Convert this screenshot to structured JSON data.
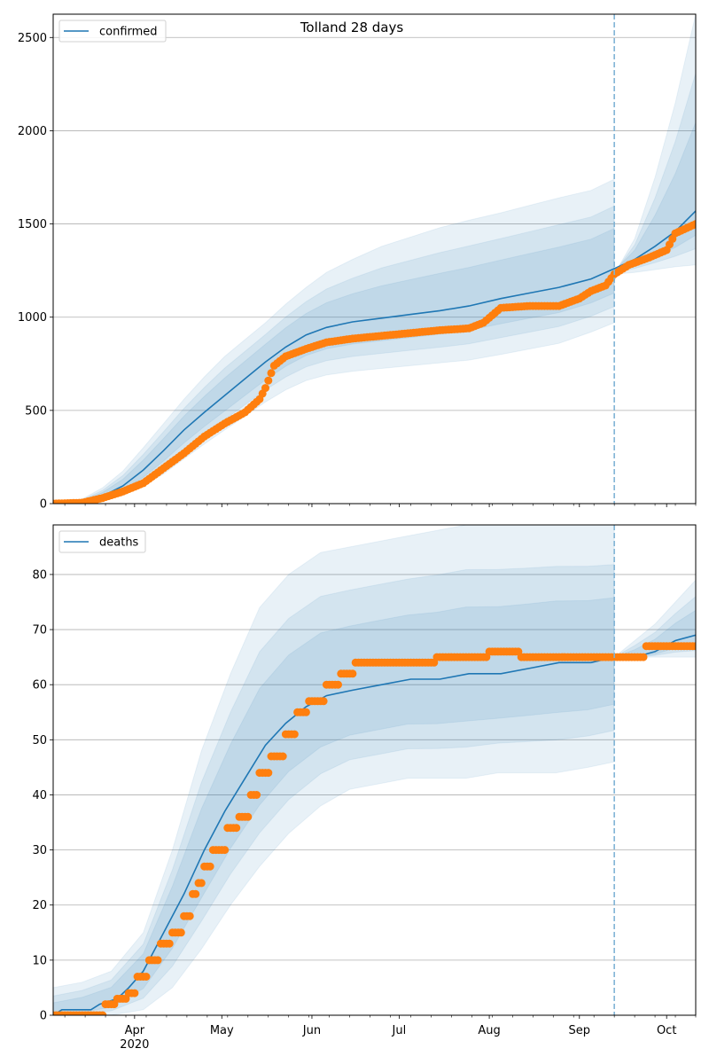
{
  "chart_data": [
    {
      "type": "line",
      "title": "Tolland 28 days",
      "xlabel": "",
      "ylabel": "",
      "x_range": [
        "2020-03-04",
        "2020-10-11"
      ],
      "ylim": [
        0,
        2625
      ],
      "yticks": [
        0,
        500,
        1000,
        1500,
        2000,
        2500
      ],
      "grid": "y",
      "legend": {
        "position": "top-left",
        "entries": [
          "confirmed"
        ]
      },
      "forecast_start": "2020-09-13",
      "colors": {
        "line": "#1f77b4",
        "points": "#ff7f0e",
        "band": "#1f77b4",
        "vline": "#7fb3d5"
      },
      "series": [
        {
          "name": "confirmed",
          "kind": "model-median",
          "x": [
            "2020-03-04",
            "2020-03-14",
            "2020-03-21",
            "2020-03-28",
            "2020-04-04",
            "2020-04-11",
            "2020-04-18",
            "2020-04-25",
            "2020-05-02",
            "2020-05-09",
            "2020-05-16",
            "2020-05-23",
            "2020-05-30",
            "2020-06-06",
            "2020-06-15",
            "2020-06-25",
            "2020-07-05",
            "2020-07-15",
            "2020-07-25",
            "2020-08-05",
            "2020-08-15",
            "2020-08-25",
            "2020-09-05",
            "2020-09-13",
            "2020-09-20",
            "2020-09-27",
            "2020-10-04",
            "2020-10-11"
          ],
          "values": [
            0,
            10,
            40,
            95,
            180,
            285,
            395,
            490,
            580,
            670,
            760,
            840,
            905,
            945,
            975,
            995,
            1015,
            1035,
            1060,
            1100,
            1130,
            1160,
            1205,
            1260,
            1310,
            1380,
            1460,
            1570
          ]
        },
        {
          "name": "confirmed observed",
          "kind": "observed-points",
          "x": [
            "2020-03-04",
            "2020-03-14",
            "2020-03-21",
            "2020-03-28",
            "2020-04-04",
            "2020-04-11",
            "2020-04-18",
            "2020-04-25",
            "2020-05-02",
            "2020-05-09",
            "2020-05-14",
            "2020-05-16",
            "2020-05-19",
            "2020-05-23",
            "2020-05-30",
            "2020-06-06",
            "2020-06-15",
            "2020-06-25",
            "2020-07-05",
            "2020-07-15",
            "2020-07-25",
            "2020-07-30",
            "2020-08-05",
            "2020-08-15",
            "2020-08-25",
            "2020-09-01",
            "2020-09-05",
            "2020-09-10",
            "2020-09-13",
            "2020-09-18",
            "2020-09-25",
            "2020-10-01",
            "2020-10-04",
            "2020-10-11"
          ],
          "values": [
            0,
            5,
            30,
            65,
            110,
            190,
            270,
            360,
            430,
            490,
            560,
            620,
            740,
            790,
            830,
            865,
            885,
            900,
            915,
            930,
            940,
            970,
            1050,
            1060,
            1060,
            1100,
            1140,
            1170,
            1230,
            1280,
            1320,
            1360,
            1450,
            1500
          ]
        },
        {
          "name": "band-outer",
          "kind": "interval",
          "x": [
            "2020-03-04",
            "2020-03-14",
            "2020-03-21",
            "2020-03-28",
            "2020-04-04",
            "2020-04-11",
            "2020-04-18",
            "2020-04-25",
            "2020-05-02",
            "2020-05-09",
            "2020-05-16",
            "2020-05-23",
            "2020-05-30",
            "2020-06-06",
            "2020-06-15",
            "2020-06-25",
            "2020-07-05",
            "2020-07-15",
            "2020-07-25",
            "2020-08-05",
            "2020-08-15",
            "2020-08-25",
            "2020-09-05",
            "2020-09-13"
          ],
          "low": [
            0,
            2,
            15,
            45,
            95,
            160,
            240,
            320,
            395,
            470,
            545,
            610,
            660,
            690,
            710,
            725,
            740,
            755,
            770,
            800,
            830,
            860,
            920,
            970
          ],
          "high": [
            0,
            25,
            85,
            175,
            300,
            430,
            560,
            680,
            790,
            880,
            970,
            1070,
            1160,
            1240,
            1310,
            1380,
            1430,
            1480,
            1520,
            1560,
            1600,
            1640,
            1680,
            1740
          ]
        },
        {
          "name": "band-outer-forecast",
          "kind": "interval",
          "x": [
            "2020-09-13",
            "2020-09-20",
            "2020-09-27",
            "2020-10-04",
            "2020-10-11"
          ],
          "low": [
            1230,
            1240,
            1255,
            1270,
            1280
          ],
          "high": [
            1230,
            1420,
            1750,
            2150,
            2625
          ]
        }
      ]
    },
    {
      "type": "line",
      "title": "",
      "xlabel": "",
      "ylabel": "",
      "x_range": [
        "2020-03-04",
        "2020-10-11"
      ],
      "ylim": [
        0,
        89
      ],
      "yticks": [
        0,
        10,
        20,
        30,
        40,
        50,
        60,
        70,
        80
      ],
      "xticks": [
        "Apr\n2020",
        "May",
        "Jun",
        "Jul",
        "Aug",
        "Sep",
        "Oct"
      ],
      "grid": "y",
      "legend": {
        "position": "top-left",
        "entries": [
          "deaths"
        ]
      },
      "forecast_start": "2020-09-13",
      "series": [
        {
          "name": "deaths",
          "kind": "model-median",
          "x": [
            "2020-03-04",
            "2020-03-07",
            "2020-03-17",
            "2020-03-20",
            "2020-03-26",
            "2020-03-30",
            "2020-04-04",
            "2020-04-11",
            "2020-04-18",
            "2020-04-25",
            "2020-05-02",
            "2020-05-09",
            "2020-05-16",
            "2020-05-23",
            "2020-05-30",
            "2020-06-06",
            "2020-06-15",
            "2020-06-25",
            "2020-07-05",
            "2020-07-15",
            "2020-07-25",
            "2020-08-05",
            "2020-08-15",
            "2020-08-25",
            "2020-09-05",
            "2020-09-13",
            "2020-09-20",
            "2020-09-27",
            "2020-10-04",
            "2020-10-11"
          ],
          "values": [
            0,
            1,
            1,
            2,
            3,
            5,
            8,
            15,
            22,
            30,
            37,
            43,
            49,
            53,
            56,
            58,
            59,
            60,
            61,
            61,
            62,
            62,
            63,
            64,
            64,
            65,
            65,
            66,
            68,
            69
          ]
        },
        {
          "name": "deaths observed",
          "kind": "observed-points",
          "x": [
            "2020-03-04",
            "2020-03-20",
            "2020-03-22",
            "2020-03-26",
            "2020-03-30",
            "2020-04-02",
            "2020-04-06",
            "2020-04-10",
            "2020-04-14",
            "2020-04-18",
            "2020-04-21",
            "2020-04-23",
            "2020-04-25",
            "2020-04-28",
            "2020-05-03",
            "2020-05-07",
            "2020-05-11",
            "2020-05-14",
            "2020-05-18",
            "2020-05-23",
            "2020-05-27",
            "2020-05-31",
            "2020-06-06",
            "2020-06-11",
            "2020-06-16",
            "2020-07-14",
            "2020-08-01",
            "2020-08-12",
            "2020-09-13",
            "2020-09-20",
            "2020-09-24",
            "2020-10-11"
          ],
          "values": [
            0,
            0,
            2,
            3,
            4,
            7,
            10,
            13,
            15,
            18,
            22,
            24,
            27,
            30,
            34,
            36,
            40,
            44,
            47,
            51,
            55,
            57,
            60,
            62,
            64,
            65,
            66,
            65,
            65,
            65,
            67,
            67
          ]
        },
        {
          "name": "band-outer",
          "kind": "interval",
          "x": [
            "2020-03-04",
            "2020-03-14",
            "2020-03-24",
            "2020-04-04",
            "2020-04-14",
            "2020-04-24",
            "2020-05-04",
            "2020-05-14",
            "2020-05-24",
            "2020-06-04",
            "2020-06-14",
            "2020-06-24",
            "2020-07-04",
            "2020-07-14",
            "2020-07-24",
            "2020-08-04",
            "2020-08-14",
            "2020-08-24",
            "2020-09-04",
            "2020-09-13"
          ],
          "low": [
            0,
            0,
            0,
            1,
            5,
            12,
            20,
            27,
            33,
            38,
            41,
            42,
            43,
            43,
            43,
            44,
            44,
            44,
            45,
            46
          ],
          "high": [
            5,
            6,
            8,
            15,
            30,
            48,
            62,
            74,
            80,
            84,
            85,
            86,
            87,
            88,
            89,
            89,
            89,
            89,
            89,
            89
          ]
        },
        {
          "name": "band-outer-forecast",
          "kind": "interval",
          "x": [
            "2020-09-13",
            "2020-09-20",
            "2020-09-27",
            "2020-10-04",
            "2020-10-11"
          ],
          "low": [
            65,
            65,
            65,
            65,
            65
          ],
          "high": [
            65,
            68,
            71,
            75,
            79
          ]
        }
      ]
    }
  ]
}
